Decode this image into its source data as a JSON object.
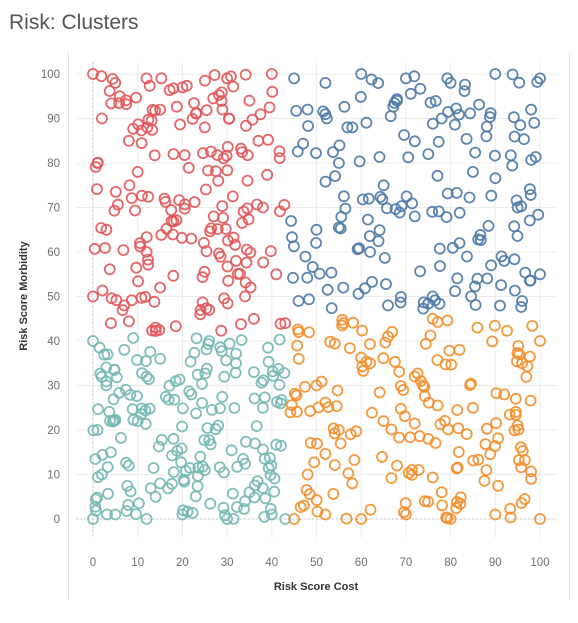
{
  "title": "Risk: Clusters",
  "chart_data": {
    "type": "scatter",
    "title": "Risk: Clusters",
    "xlabel": "Risk Score Cost",
    "ylabel": "Risk Score Morbidity",
    "xlim": [
      0,
      100
    ],
    "ylim": [
      0,
      100
    ],
    "x_ticks": [
      0,
      10,
      20,
      30,
      40,
      50,
      60,
      70,
      80,
      90,
      100
    ],
    "y_ticks": [
      0,
      10,
      20,
      30,
      40,
      50,
      60,
      70,
      80,
      90,
      100
    ],
    "grid": true,
    "marker": "open-circle",
    "series": [
      {
        "color": "#e15759",
        "x_range": [
          0,
          43
        ],
        "y_range": [
          42,
          100
        ],
        "points": [
          [
            0,
            100
          ],
          [
            5,
            98
          ],
          [
            12,
            99
          ],
          [
            20,
            97
          ],
          [
            30,
            99
          ],
          [
            40,
            100
          ],
          [
            2,
            90
          ],
          [
            8,
            85
          ],
          [
            15,
            92
          ],
          [
            25,
            88
          ],
          [
            35,
            94
          ],
          [
            1,
            80
          ],
          [
            10,
            78
          ],
          [
            18,
            82
          ],
          [
            28,
            76
          ],
          [
            38,
            70
          ],
          [
            3,
            65
          ],
          [
            12,
            60
          ],
          [
            22,
            63
          ],
          [
            32,
            58
          ],
          [
            41,
            55
          ],
          [
            0,
            50
          ],
          [
            7,
            48
          ],
          [
            15,
            52
          ],
          [
            26,
            47
          ],
          [
            36,
            45
          ],
          [
            4,
            44
          ],
          [
            14,
            43
          ],
          [
            24,
            46
          ],
          [
            34,
            50
          ],
          [
            43,
            44
          ],
          [
            6,
            95
          ],
          [
            16,
            72
          ],
          [
            27,
            68
          ],
          [
            37,
            85
          ]
        ]
      },
      {
        "color": "#4e79a7",
        "x_range": [
          44,
          100
        ],
        "y_range": [
          47,
          100
        ],
        "points": [
          [
            45,
            99
          ],
          [
            52,
            98
          ],
          [
            60,
            100
          ],
          [
            70,
            99
          ],
          [
            80,
            98
          ],
          [
            90,
            100
          ],
          [
            100,
            99
          ],
          [
            48,
            92
          ],
          [
            58,
            88
          ],
          [
            68,
            94
          ],
          [
            78,
            90
          ],
          [
            88,
            86
          ],
          [
            98,
            92
          ],
          [
            55,
            80
          ],
          [
            65,
            75
          ],
          [
            75,
            82
          ],
          [
            85,
            78
          ],
          [
            95,
            70
          ],
          [
            50,
            65
          ],
          [
            62,
            60
          ],
          [
            72,
            68
          ],
          [
            82,
            62
          ],
          [
            92,
            58
          ],
          [
            100,
            55
          ],
          [
            46,
            49
          ],
          [
            56,
            52
          ],
          [
            66,
            48
          ],
          [
            76,
            50
          ],
          [
            86,
            54
          ],
          [
            96,
            49
          ]
        ]
      },
      {
        "color": "#76b7b2",
        "x_range": [
          0,
          43
        ],
        "y_range": [
          0,
          42
        ],
        "points": [
          [
            0,
            0
          ],
          [
            5,
            1
          ],
          [
            12,
            0
          ],
          [
            20,
            1
          ],
          [
            30,
            0
          ],
          [
            40,
            1
          ],
          [
            43,
            0
          ],
          [
            2,
            10
          ],
          [
            8,
            12
          ],
          [
            15,
            8
          ],
          [
            25,
            11
          ],
          [
            35,
            6
          ],
          [
            1,
            20
          ],
          [
            10,
            22
          ],
          [
            18,
            18
          ],
          [
            28,
            21
          ],
          [
            38,
            25
          ],
          [
            3,
            30
          ],
          [
            12,
            32
          ],
          [
            22,
            28
          ],
          [
            32,
            35
          ],
          [
            0,
            40
          ],
          [
            7,
            38
          ],
          [
            15,
            36
          ],
          [
            26,
            40
          ],
          [
            36,
            33
          ],
          [
            4,
            15
          ],
          [
            14,
            5
          ],
          [
            24,
            14
          ],
          [
            34,
            4
          ],
          [
            42,
            26
          ]
        ]
      },
      {
        "color": "#f28e2b",
        "x_range": [
          44,
          100
        ],
        "y_range": [
          0,
          46
        ],
        "points": [
          [
            45,
            0
          ],
          [
            52,
            1
          ],
          [
            60,
            0
          ],
          [
            70,
            1
          ],
          [
            80,
            0
          ],
          [
            90,
            1
          ],
          [
            100,
            0
          ],
          [
            48,
            10
          ],
          [
            58,
            8
          ],
          [
            68,
            12
          ],
          [
            78,
            6
          ],
          [
            88,
            11
          ],
          [
            98,
            9
          ],
          [
            55,
            20
          ],
          [
            65,
            22
          ],
          [
            75,
            18
          ],
          [
            85,
            25
          ],
          [
            95,
            21
          ],
          [
            50,
            30
          ],
          [
            62,
            35
          ],
          [
            72,
            32
          ],
          [
            82,
            38
          ],
          [
            92,
            28
          ],
          [
            100,
            40
          ],
          [
            46,
            42
          ],
          [
            56,
            44
          ],
          [
            66,
            41
          ],
          [
            76,
            45
          ],
          [
            86,
            43
          ],
          [
            96,
            35
          ]
        ]
      }
    ]
  }
}
